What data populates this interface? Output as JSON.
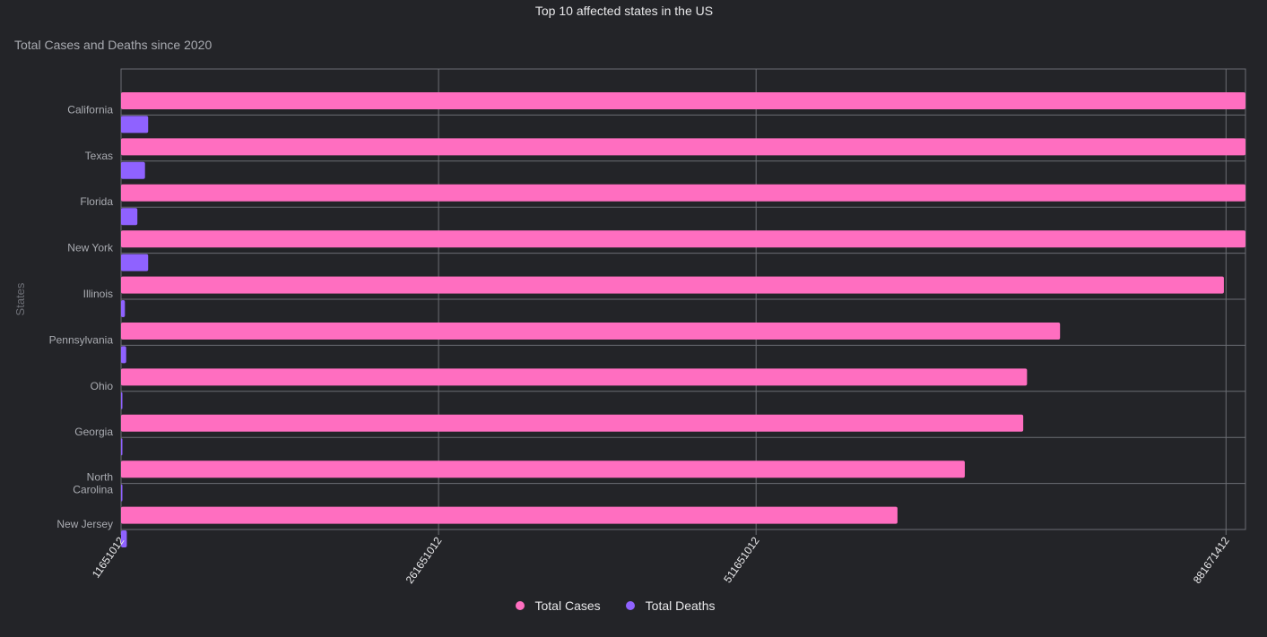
{
  "chart_data": {
    "type": "bar",
    "orientation": "horizontal",
    "title": "Top 10 affected states in the US",
    "subtitle": "Total Cases and Deaths since 2020",
    "ylabel": "States",
    "xlabel": "",
    "categories": [
      "California",
      "Texas",
      "Florida",
      "New York",
      "Illinois",
      "Pennsylvania",
      "Ohio",
      "Georgia",
      "North Carolina",
      "New Jersey"
    ],
    "x_ticks": [
      "11651012",
      "261651012",
      "511651012",
      "881671412"
    ],
    "xlim": [
      11651012,
      897000000
    ],
    "series": [
      {
        "name": "Total Cases",
        "color": "#ff6ec0",
        "values": [
          897000000,
          897000000,
          897000000,
          897000000,
          880000000,
          751000000,
          725000000,
          722000000,
          676000000,
          623000000
        ]
      },
      {
        "name": "Total Deaths",
        "color": "#8f62ff",
        "values": [
          33000000,
          30500000,
          24500000,
          33000000,
          14700000,
          15700000,
          11651012,
          12500000,
          11651012,
          16200000
        ]
      }
    ],
    "grid": true,
    "legend_position": "bottom"
  }
}
